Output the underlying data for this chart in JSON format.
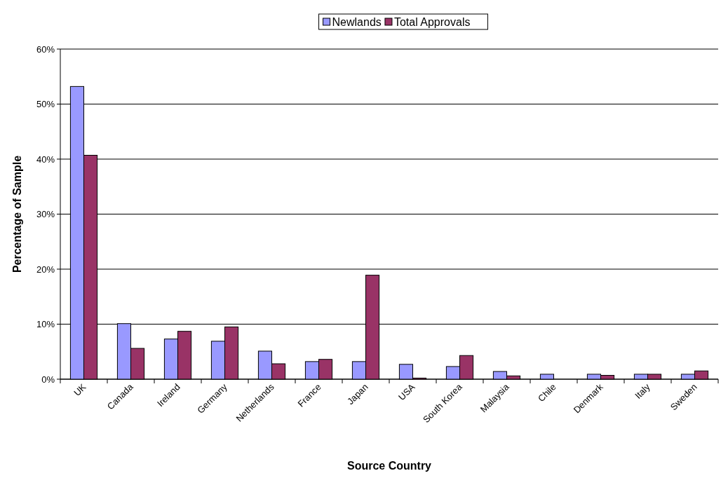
{
  "chart_data": {
    "type": "bar",
    "xlabel": "Source Country",
    "ylabel": "Percentage of Sample",
    "categories": [
      "UK",
      "Canada",
      "Ireland",
      "Germany",
      "Netherlands",
      "France",
      "Japan",
      "USA",
      "South Korea",
      "Malaysia",
      "Chile",
      "Denmark",
      "Italy",
      "Sweden"
    ],
    "series": [
      {
        "name": "Newlands",
        "color": "#9999ff",
        "values": [
          53.2,
          10.1,
          7.3,
          6.9,
          5.1,
          3.2,
          3.2,
          2.7,
          2.3,
          1.4,
          0.9,
          0.9,
          0.9,
          0.9
        ]
      },
      {
        "name": "Total Approvals",
        "color": "#993366",
        "values": [
          40.7,
          5.6,
          8.7,
          9.5,
          2.8,
          3.6,
          18.9,
          0.2,
          4.3,
          0.6,
          0,
          0.7,
          0.9,
          1.5
        ]
      }
    ],
    "ylim": [
      0,
      60
    ],
    "yticks": [
      {
        "value": 0,
        "label": "0%"
      },
      {
        "value": 10,
        "label": "10%"
      },
      {
        "value": 20,
        "label": "20%"
      },
      {
        "value": 30,
        "label": "30%"
      },
      {
        "value": 40,
        "label": "40%"
      },
      {
        "value": 50,
        "label": "50%"
      },
      {
        "value": 60,
        "label": "60%"
      }
    ],
    "grid": "y",
    "legend": "top"
  }
}
